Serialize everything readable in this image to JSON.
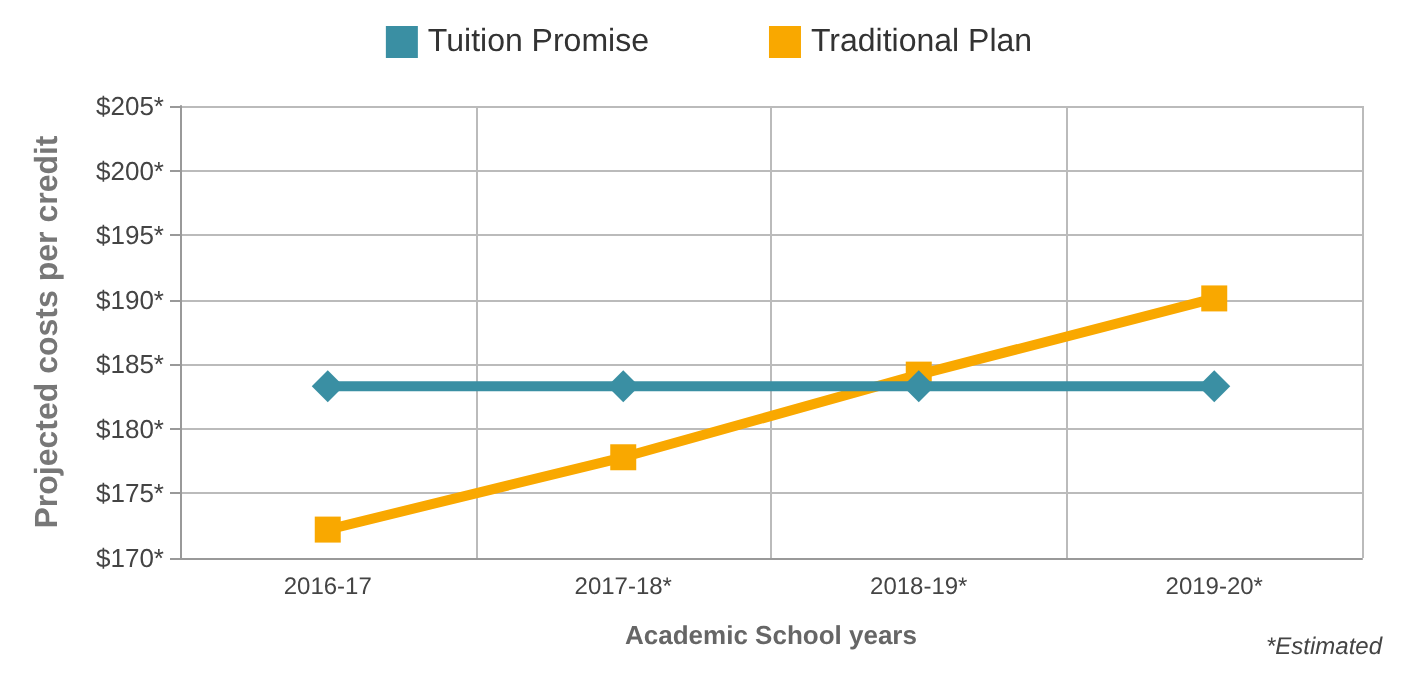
{
  "chart_data": {
    "type": "line",
    "categories": [
      "2016-17",
      "2017-18*",
      "2018-19*",
      "2019-20*"
    ],
    "series": [
      {
        "name": "Tuition Promise",
        "color": "#3a8fa3",
        "marker": "diamond",
        "values": [
          183.3,
          183.3,
          183.3,
          183.3
        ]
      },
      {
        "name": "Traditional Plan",
        "color": "#f9a800",
        "marker": "square",
        "values": [
          172.2,
          177.8,
          184.2,
          190.1
        ]
      }
    ],
    "xlabel": "Academic School years",
    "ylabel": "Projected costs per credit",
    "ylim": [
      170,
      205
    ],
    "yticks": [
      {
        "value": 170,
        "label": "$170*"
      },
      {
        "value": 175,
        "label": "$175*"
      },
      {
        "value": 180,
        "label": "$180*"
      },
      {
        "value": 185,
        "label": "$185*"
      },
      {
        "value": 190,
        "label": "$190*"
      },
      {
        "value": 195,
        "label": "$195*"
      },
      {
        "value": 200,
        "label": "$200*"
      },
      {
        "value": 205,
        "label": "$205*"
      }
    ],
    "grid": true,
    "legend": "top",
    "annotations": [
      "*Estimated"
    ]
  }
}
